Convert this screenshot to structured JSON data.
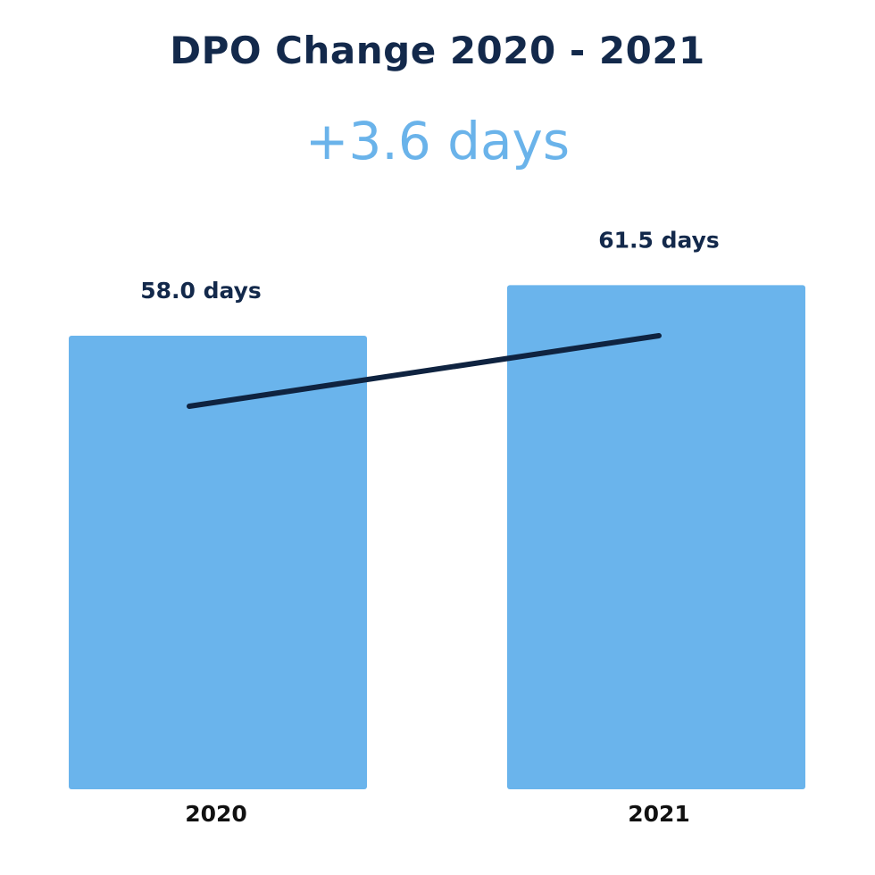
{
  "chart_data": {
    "type": "bar",
    "title": "DPO Change 2020 - 2021",
    "subtitle": "+3.6 days",
    "categories": [
      "2020",
      "2021"
    ],
    "values": [
      58.0,
      61.5
    ],
    "data_labels": [
      "58.0 days",
      "61.5 days"
    ],
    "unit": "days",
    "trend_line": true,
    "grid": false,
    "colors": {
      "bar": "#6ab4ec",
      "title": "#13294b",
      "subtitle": "#6ab3ea",
      "trend_line": "#0f2340"
    }
  }
}
